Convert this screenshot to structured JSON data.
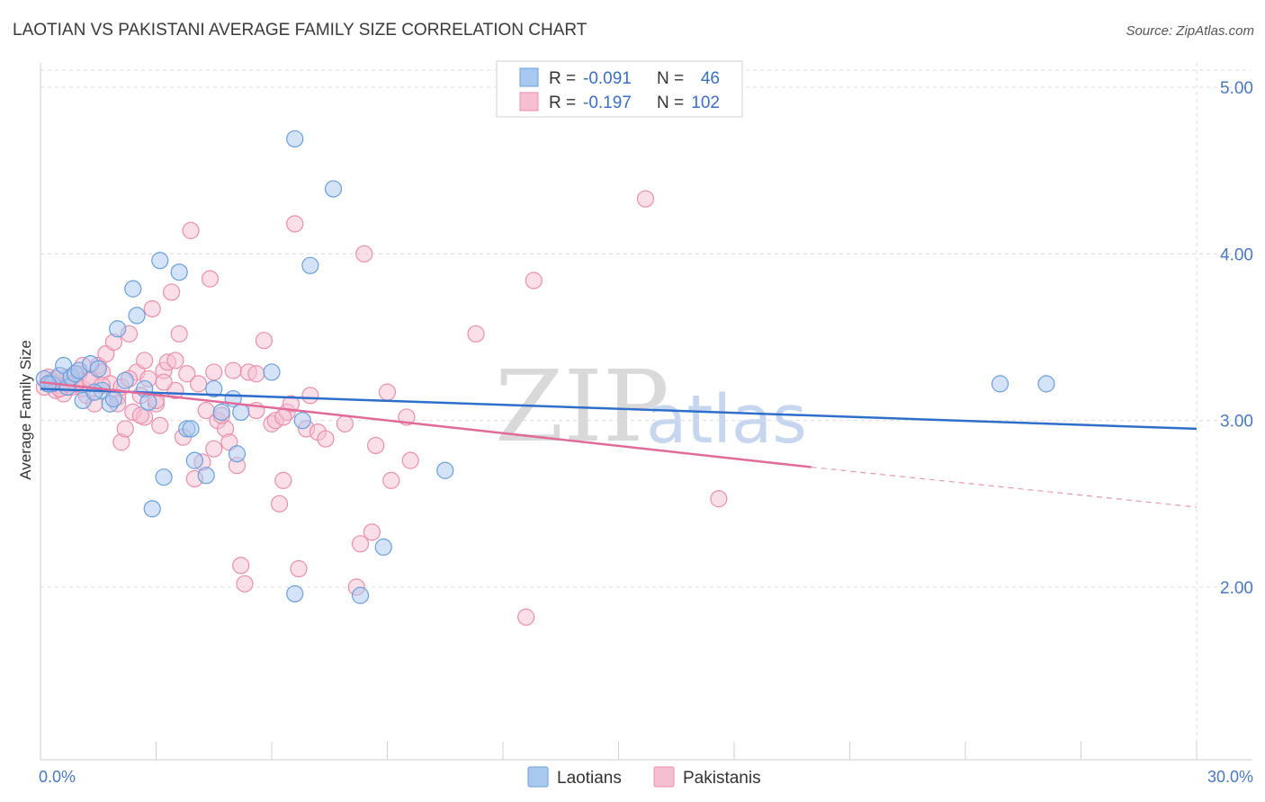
{
  "title": "LAOTIAN VS PAKISTANI AVERAGE FAMILY SIZE CORRELATION CHART",
  "source": "Source: ZipAtlas.com",
  "watermark": {
    "zip": "ZIP",
    "atlas": "atlas"
  },
  "legend": {
    "r_label": "R =",
    "n_label": "N =",
    "rows": [
      {
        "name": "Laotians",
        "r": "-0.091",
        "n": "46"
      },
      {
        "name": "Pakistanis",
        "r": "-0.197",
        "n": "102"
      }
    ]
  },
  "colors": {
    "laotian_fill": "#a9c8f0",
    "laotian_stroke": "#6a9fdc",
    "laotian_line": "#2f6fcc",
    "pakistani_fill": "#f6bfd1",
    "pakistani_stroke": "#e98fae",
    "pakistani_line": "#e06b98",
    "grid": "#dddddd",
    "tick_text": "#4a78c2"
  },
  "chart_data": {
    "type": "scatter",
    "title": "LAOTIAN VS PAKISTANI AVERAGE FAMILY SIZE CORRELATION CHART",
    "xlabel": "",
    "ylabel": "Average Family Size",
    "xlim": [
      0,
      30
    ],
    "ylim": [
      1.0,
      5.2
    ],
    "x_tick_labels": [
      "0.0%",
      "30.0%"
    ],
    "y_ticks": [
      2.0,
      3.0,
      4.0,
      5.0
    ],
    "y_tick_labels": [
      "2.00",
      "3.00",
      "4.00",
      "5.00"
    ],
    "grid": true,
    "legend_position": "top-center",
    "series": [
      {
        "name": "Laotians",
        "points": [
          [
            0.1,
            3.25
          ],
          [
            0.3,
            3.22
          ],
          [
            0.5,
            3.27
          ],
          [
            0.6,
            3.33
          ],
          [
            0.7,
            3.2
          ],
          [
            0.8,
            3.26
          ],
          [
            0.9,
            3.28
          ],
          [
            1.0,
            3.3
          ],
          [
            1.1,
            3.12
          ],
          [
            1.3,
            3.34
          ],
          [
            1.5,
            3.31
          ],
          [
            1.6,
            3.18
          ],
          [
            1.8,
            3.1
          ],
          [
            1.9,
            3.13
          ],
          [
            2.0,
            3.55
          ],
          [
            2.2,
            3.24
          ],
          [
            2.4,
            3.79
          ],
          [
            2.5,
            3.63
          ],
          [
            2.7,
            3.19
          ],
          [
            2.8,
            3.11
          ],
          [
            2.9,
            2.47
          ],
          [
            3.1,
            3.96
          ],
          [
            3.2,
            2.66
          ],
          [
            3.6,
            3.89
          ],
          [
            3.8,
            2.95
          ],
          [
            3.9,
            2.95
          ],
          [
            4.0,
            2.76
          ],
          [
            4.3,
            2.67
          ],
          [
            4.5,
            3.19
          ],
          [
            4.7,
            3.05
          ],
          [
            5.0,
            3.13
          ],
          [
            5.1,
            2.8
          ],
          [
            5.2,
            3.05
          ],
          [
            6.0,
            3.29
          ],
          [
            6.6,
            4.69
          ],
          [
            6.6,
            1.96
          ],
          [
            6.8,
            3.0
          ],
          [
            7.0,
            3.93
          ],
          [
            7.6,
            4.39
          ],
          [
            8.3,
            1.95
          ],
          [
            8.9,
            2.24
          ],
          [
            10.5,
            2.7
          ],
          [
            24.9,
            3.22
          ],
          [
            26.1,
            3.22
          ],
          [
            0.2,
            3.22
          ],
          [
            1.4,
            3.17
          ]
        ],
        "trend": {
          "x": [
            0,
            30
          ],
          "y": [
            3.19,
            2.95
          ]
        }
      },
      {
        "name": "Pakistanis",
        "points": [
          [
            0.1,
            3.2
          ],
          [
            0.2,
            3.22
          ],
          [
            0.3,
            3.24
          ],
          [
            0.4,
            3.18
          ],
          [
            0.5,
            3.21
          ],
          [
            0.6,
            3.16
          ],
          [
            0.7,
            3.26
          ],
          [
            0.8,
            3.2
          ],
          [
            0.9,
            3.23
          ],
          [
            1.0,
            3.28
          ],
          [
            1.1,
            3.19
          ],
          [
            1.2,
            3.15
          ],
          [
            1.3,
            3.25
          ],
          [
            1.4,
            3.1
          ],
          [
            1.5,
            3.33
          ],
          [
            1.6,
            3.29
          ],
          [
            1.7,
            3.4
          ],
          [
            1.8,
            3.22
          ],
          [
            1.9,
            3.47
          ],
          [
            2.0,
            3.14
          ],
          [
            2.1,
            2.87
          ],
          [
            2.1,
            3.2
          ],
          [
            2.2,
            2.95
          ],
          [
            2.3,
            3.52
          ],
          [
            2.4,
            3.05
          ],
          [
            2.5,
            3.29
          ],
          [
            2.6,
            3.15
          ],
          [
            2.7,
            3.02
          ],
          [
            2.7,
            3.36
          ],
          [
            2.8,
            3.25
          ],
          [
            2.9,
            3.67
          ],
          [
            3.0,
            3.1
          ],
          [
            3.1,
            2.97
          ],
          [
            3.2,
            3.3
          ],
          [
            3.3,
            3.35
          ],
          [
            3.4,
            3.77
          ],
          [
            3.5,
            3.18
          ],
          [
            3.6,
            3.52
          ],
          [
            3.7,
            2.9
          ],
          [
            3.8,
            3.28
          ],
          [
            3.9,
            4.14
          ],
          [
            4.0,
            2.65
          ],
          [
            4.1,
            3.22
          ],
          [
            4.2,
            2.75
          ],
          [
            4.3,
            3.06
          ],
          [
            4.4,
            3.85
          ],
          [
            4.5,
            3.29
          ],
          [
            4.5,
            2.83
          ],
          [
            4.6,
            3.0
          ],
          [
            4.8,
            2.95
          ],
          [
            4.9,
            2.87
          ],
          [
            5.0,
            3.3
          ],
          [
            5.1,
            2.73
          ],
          [
            5.2,
            2.13
          ],
          [
            5.3,
            2.02
          ],
          [
            5.4,
            3.29
          ],
          [
            5.6,
            3.06
          ],
          [
            5.8,
            3.48
          ],
          [
            6.0,
            2.98
          ],
          [
            6.1,
            3.0
          ],
          [
            6.2,
            2.5
          ],
          [
            6.3,
            2.64
          ],
          [
            6.4,
            3.05
          ],
          [
            6.5,
            3.1
          ],
          [
            6.6,
            4.18
          ],
          [
            6.7,
            2.11
          ],
          [
            6.9,
            2.95
          ],
          [
            7.0,
            3.15
          ],
          [
            7.2,
            2.93
          ],
          [
            7.4,
            2.89
          ],
          [
            7.9,
            2.98
          ],
          [
            8.2,
            2.0
          ],
          [
            8.3,
            2.26
          ],
          [
            8.4,
            4.0
          ],
          [
            8.6,
            2.33
          ],
          [
            8.7,
            2.85
          ],
          [
            9.0,
            3.17
          ],
          [
            9.1,
            2.64
          ],
          [
            9.5,
            3.02
          ],
          [
            9.6,
            2.76
          ],
          [
            11.3,
            3.52
          ],
          [
            12.6,
            1.82
          ],
          [
            12.8,
            3.84
          ],
          [
            15.7,
            4.33
          ],
          [
            17.6,
            2.53
          ],
          [
            0.2,
            3.26
          ],
          [
            0.5,
            3.19
          ],
          [
            0.9,
            3.22
          ],
          [
            1.3,
            3.24
          ],
          [
            2.3,
            3.25
          ],
          [
            3.0,
            3.12
          ],
          [
            3.5,
            3.36
          ],
          [
            1.6,
            3.21
          ],
          [
            2.6,
            3.03
          ],
          [
            0.4,
            3.25
          ],
          [
            1.1,
            3.33
          ],
          [
            4.7,
            3.03
          ],
          [
            3.2,
            3.23
          ],
          [
            5.6,
            3.28
          ],
          [
            6.3,
            3.02
          ],
          [
            2.0,
            3.1
          ],
          [
            0.7,
            3.22
          ]
        ],
        "trend": {
          "x": [
            0,
            20
          ],
          "y": [
            3.23,
            2.72
          ]
        },
        "trend_extension": {
          "x": [
            20,
            30
          ],
          "y": [
            2.72,
            2.48
          ]
        }
      }
    ]
  }
}
